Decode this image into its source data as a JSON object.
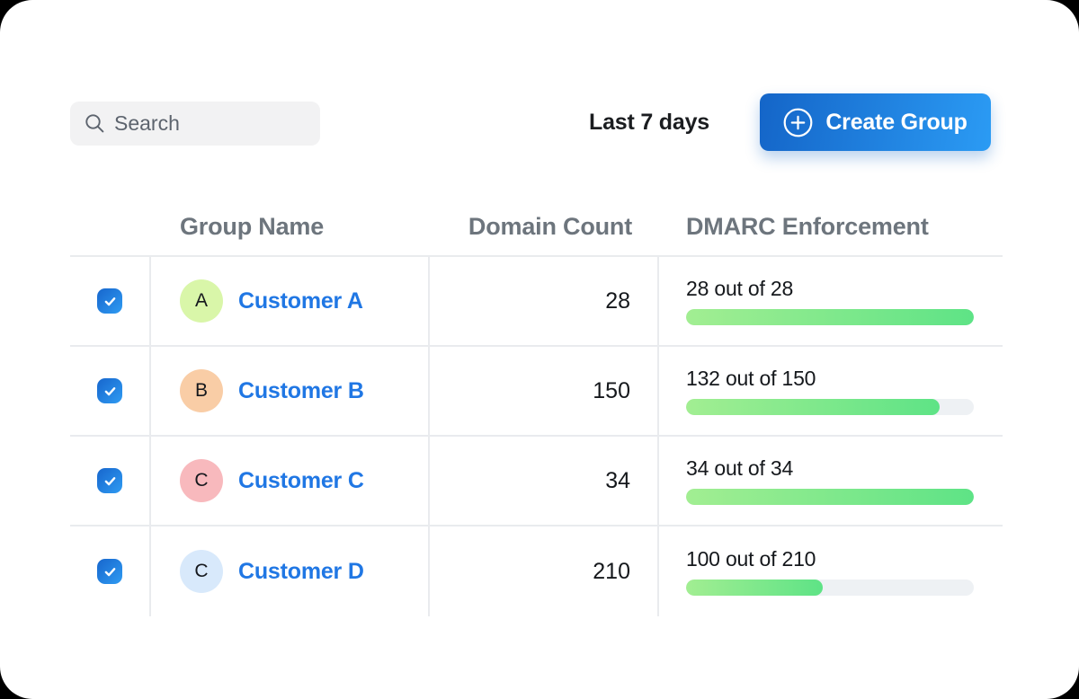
{
  "topbar": {
    "search": {
      "placeholder": "Search"
    },
    "date_range": "Last 7 days",
    "create_group_label": "Create Group"
  },
  "colors": {
    "button_gradient_start": "#1465c8",
    "button_gradient_end": "#2b9bf4",
    "link_blue": "#2077e4",
    "progress_gradient_start": "#a2ee92",
    "progress_gradient_end": "#5ee386",
    "progress_track": "#eef1f4",
    "header_text": "#6d757d"
  },
  "table": {
    "columns": {
      "name": "Group Name",
      "count": "Domain Count",
      "dmarc": "DMARC Enforcement"
    },
    "rows": [
      {
        "selected": true,
        "avatar_letter": "A",
        "avatar_color": "#d9f6a9",
        "name": "Customer A",
        "domain_count": "28",
        "enforcement_label": "28 out of 28",
        "enforced": 28,
        "total": 28
      },
      {
        "selected": true,
        "avatar_letter": "B",
        "avatar_color": "#f9cda6",
        "name": "Customer B",
        "domain_count": "150",
        "enforcement_label": "132 out of 150",
        "enforced": 132,
        "total": 150
      },
      {
        "selected": true,
        "avatar_letter": "C",
        "avatar_color": "#f8b9bd",
        "name": "Customer C",
        "domain_count": "34",
        "enforcement_label": "34 out of 34",
        "enforced": 34,
        "total": 34
      },
      {
        "selected": true,
        "avatar_letter": "C",
        "avatar_color": "#d8e9fb",
        "name": "Customer D",
        "domain_count": "210",
        "enforcement_label": "100 out of 210",
        "enforced": 100,
        "total": 210
      }
    ]
  }
}
